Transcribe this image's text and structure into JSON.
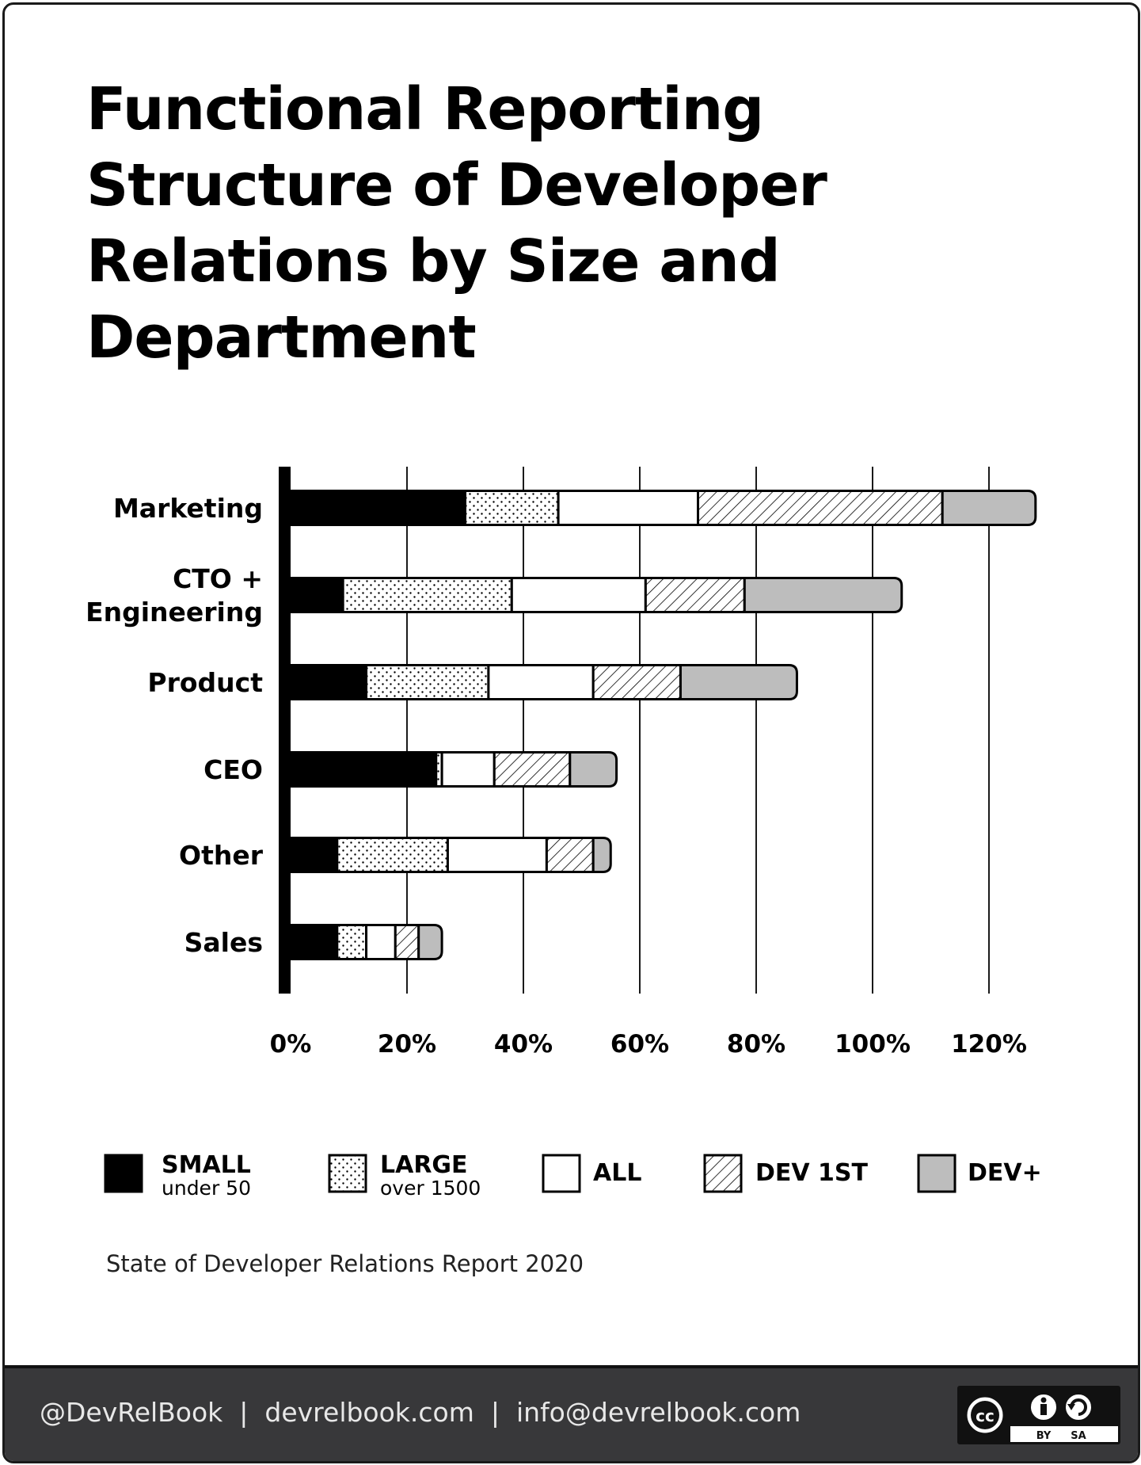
{
  "title": "Functional Reporting Structure of Developer Relations by Size and Department",
  "source": "State of Developer Relations Report 2020",
  "footer": {
    "handle": "@DevRelBook",
    "separator": "|",
    "website": "devrelbook.com",
    "email": "info@devrelbook.com"
  },
  "license": {
    "by": "BY",
    "sa": "SA"
  },
  "colors": {
    "small": "#000000",
    "large": "#ffffff",
    "all": "#ffffff",
    "dev1st": "#ffffff",
    "devplus": "#bdbdbd",
    "gridline": "#1a1a1a",
    "footer_bg": "#38383a"
  },
  "chart_data": {
    "type": "bar",
    "orientation": "horizontal",
    "stacked": true,
    "title": "Functional Reporting Structure of Developer Relations by Size and Department",
    "categories": [
      [
        "Marketing"
      ],
      [
        "CTO +",
        "Engineering"
      ],
      [
        "Product"
      ],
      [
        "CEO"
      ],
      [
        "Other"
      ],
      [
        "Sales"
      ]
    ],
    "series": [
      {
        "key": "small",
        "name": "SMALL",
        "sub": "under 50",
        "fill": "solid-black",
        "values": [
          30,
          9,
          13,
          25,
          8,
          8
        ]
      },
      {
        "key": "large",
        "name": "LARGE",
        "sub": "over 1500",
        "fill": "dots",
        "values": [
          16,
          29,
          21,
          1,
          19,
          5
        ]
      },
      {
        "key": "all",
        "name": "ALL",
        "sub": "",
        "fill": "white",
        "values": [
          24,
          23,
          18,
          9,
          17,
          5
        ]
      },
      {
        "key": "dev1st",
        "name": "DEV 1ST",
        "sub": "",
        "fill": "hatch",
        "values": [
          42,
          17,
          15,
          13,
          8,
          4
        ]
      },
      {
        "key": "devplus",
        "name": "DEV+",
        "sub": "",
        "fill": "gray",
        "values": [
          16,
          27,
          20,
          8,
          3,
          4
        ]
      }
    ],
    "x_ticks": [
      "0%",
      "20%",
      "40%",
      "60%",
      "80%",
      "100%",
      "120%"
    ],
    "xlim": [
      0,
      130
    ],
    "grid": true,
    "legend_position": "bottom"
  }
}
